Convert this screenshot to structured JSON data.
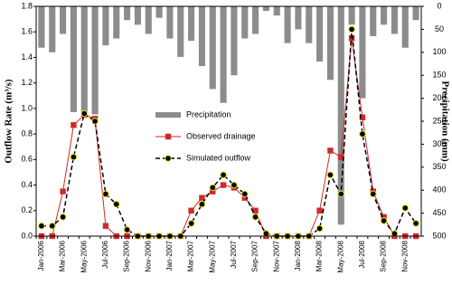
{
  "chart_data": {
    "type": "combo",
    "y_label": "Outflow Rate (m³/s)",
    "y2_label": "Precipitation (mm)",
    "categories": [
      "Jan-2006",
      null,
      "Mar-2006",
      null,
      "May-2006",
      null,
      "Jul-2006",
      null,
      "Sep-2006",
      null,
      "Nov-2006",
      null,
      "Jan-2007",
      null,
      "Mar-2007",
      null,
      "May-2007",
      null,
      "Jul-2007",
      null,
      "Sep-2007",
      null,
      "Nov-2007",
      null,
      "Jan-2008",
      null,
      "Mar-2008",
      null,
      "May-2008",
      null,
      "Jul-2008",
      null,
      "Sep-2008",
      null,
      "Nov-2008",
      null
    ],
    "series": [
      {
        "name": "Precipitation",
        "type": "bar",
        "axis": "y2",
        "color": "#8c8c8c",
        "values": [
          90,
          100,
          60,
          230,
          240,
          235,
          85,
          70,
          30,
          40,
          60,
          25,
          70,
          110,
          75,
          130,
          180,
          210,
          150,
          70,
          60,
          10,
          20,
          80,
          50,
          80,
          120,
          160,
          475,
          40,
          200,
          65,
          40,
          60,
          90,
          30
        ]
      },
      {
        "name": "Observed drainage",
        "type": "line",
        "color": "#d02a2a",
        "marker": "square",
        "dashed": false,
        "values": [
          0,
          0,
          0.35,
          0.87,
          0.95,
          0.92,
          0.08,
          0,
          0,
          0,
          0,
          0,
          0,
          0,
          0.2,
          0.3,
          0.35,
          0.4,
          0.38,
          0.3,
          0.2,
          0,
          0,
          0,
          0,
          0,
          0.2,
          0.67,
          0.62,
          1.55,
          0.93,
          0.35,
          0.15,
          0,
          0,
          0
        ]
      },
      {
        "name": "Simulated outflow",
        "type": "line",
        "color": "#000000",
        "marker": "circle",
        "dashed": true,
        "values": [
          0.08,
          0.08,
          0.15,
          0.62,
          0.96,
          0.9,
          0.33,
          0.25,
          0.05,
          0,
          0,
          0,
          0,
          0,
          0.1,
          0.25,
          0.38,
          0.48,
          0.4,
          0.33,
          0.15,
          0.02,
          0,
          0,
          0,
          0,
          0.06,
          0.48,
          0.33,
          1.62,
          0.8,
          0.33,
          0.12,
          0.02,
          0.22,
          0.1
        ]
      }
    ],
    "ylim": [
      0,
      1.8
    ],
    "yticks": [
      {
        "value": 0,
        "label": "0.0"
      },
      0.2,
      0.4,
      0.6,
      0.8,
      {
        "value": 1,
        "label": "1.0"
      },
      1.2,
      1.4,
      1.6,
      1.8
    ],
    "y2lim": [
      0,
      500
    ],
    "y2_inverted": true,
    "y2ticks": [
      0,
      50,
      100,
      150,
      200,
      250,
      300,
      350,
      400,
      450,
      500
    ],
    "legend": "center-left"
  }
}
